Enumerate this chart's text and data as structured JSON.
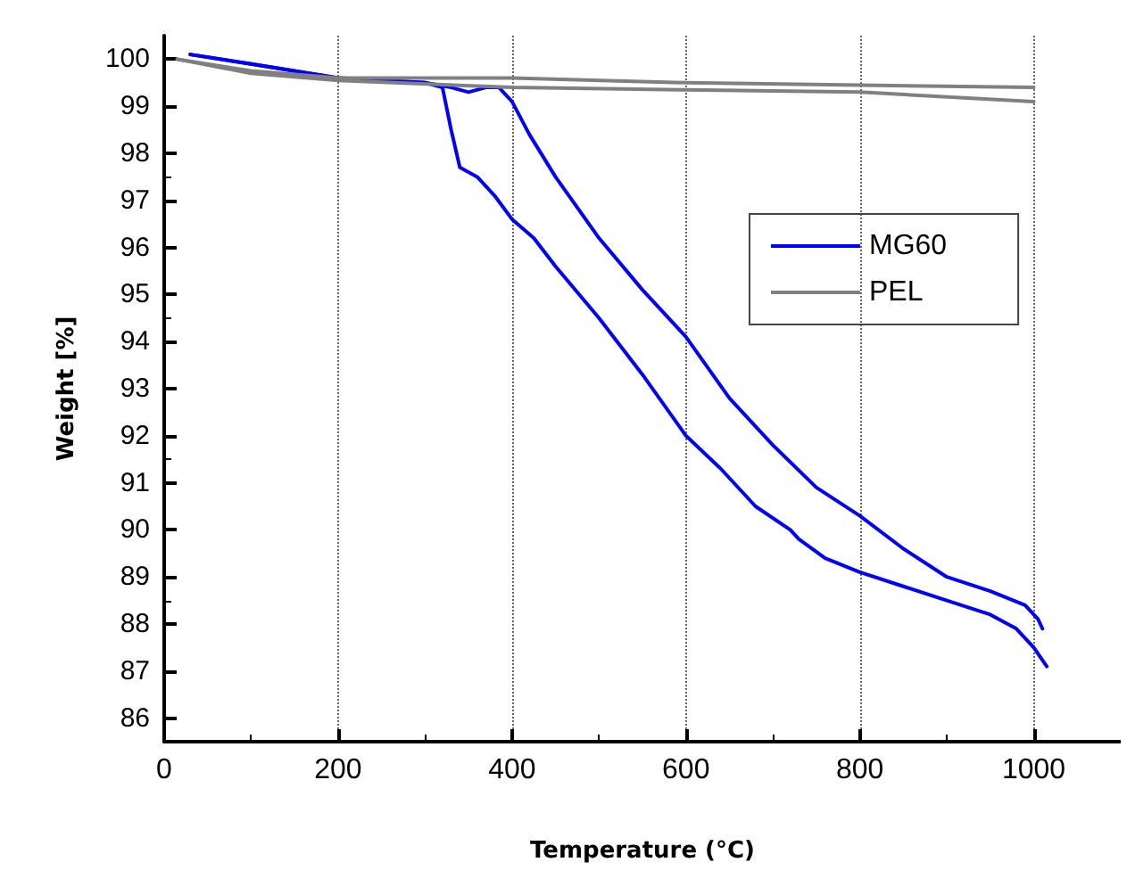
{
  "chart_data": {
    "type": "line",
    "xlabel": "Temperature (°C)",
    "ylabel": "Weight [%]",
    "xlim": [
      0,
      1100
    ],
    "ylim": [
      85.5,
      100.5
    ],
    "xticks": [
      0,
      200,
      400,
      600,
      800,
      1000
    ],
    "yticks": [
      86,
      87,
      88,
      89,
      90,
      91,
      92,
      93,
      94,
      95,
      96,
      97,
      98,
      99,
      100
    ],
    "grid": "x",
    "legend": "top right",
    "line_style": "solid",
    "marker": "none",
    "series": [
      {
        "name": "MG60",
        "color": "#0000ff",
        "x": [
          30,
          100,
          200,
          300,
          320,
          330,
          340,
          360,
          380,
          400,
          425,
          450,
          500,
          550,
          600,
          640,
          680,
          720,
          730,
          760,
          800,
          850,
          900,
          950,
          980,
          1000,
          1015
        ],
        "values": [
          100.1,
          99.9,
          99.6,
          99.5,
          99.4,
          98.5,
          97.7,
          97.5,
          97.1,
          96.6,
          96.2,
          95.6,
          94.5,
          93.3,
          92.0,
          91.3,
          90.5,
          90.0,
          89.8,
          89.4,
          89.1,
          88.8,
          88.5,
          88.2,
          87.9,
          87.5,
          87.1
        ]
      },
      {
        "color": "#0000ff",
        "x": [
          30,
          100,
          200,
          300,
          330,
          350,
          370,
          385,
          400,
          420,
          450,
          500,
          550,
          600,
          650,
          700,
          750,
          800,
          850,
          900,
          950,
          990,
          1005,
          1010
        ],
        "values": [
          100.1,
          99.9,
          99.6,
          99.5,
          99.4,
          99.3,
          99.4,
          99.4,
          99.1,
          98.4,
          97.5,
          96.2,
          95.1,
          94.1,
          92.8,
          91.8,
          90.9,
          90.3,
          89.6,
          89.0,
          88.7,
          88.4,
          88.1,
          87.9
        ]
      },
      {
        "name": "PEL",
        "color": "#808080",
        "x": [
          15,
          100,
          200,
          400,
          600,
          800,
          1000
        ],
        "values": [
          100.0,
          99.75,
          99.6,
          99.6,
          99.5,
          99.45,
          99.4
        ]
      },
      {
        "color": "#808080",
        "x": [
          15,
          100,
          200,
          400,
          600,
          800,
          1000
        ],
        "values": [
          100.0,
          99.7,
          99.55,
          99.4,
          99.35,
          99.3,
          99.1
        ]
      }
    ]
  }
}
